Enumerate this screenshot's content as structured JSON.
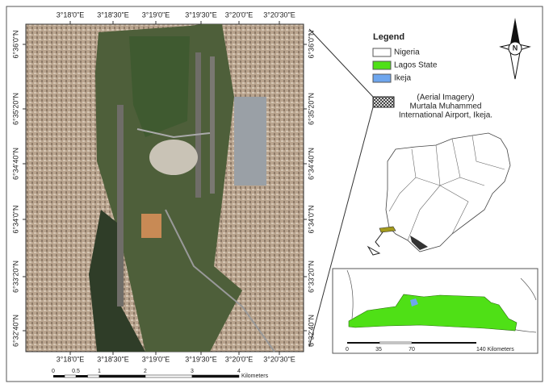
{
  "map": {
    "top_lon_labels": [
      "3°18'0\"E",
      "3°18'30\"E",
      "3°19'0\"E",
      "3°19'30\"E",
      "3°20'0\"E",
      "3°20'30\"E"
    ],
    "bottom_lon_labels": [
      "3°18'0\"E",
      "3°18'30\"E",
      "3°19'0\"E",
      "3°19'30\"E",
      "3°20'0\"E",
      "3°20'30\"E"
    ],
    "left_lat_labels": [
      "6°36'0\"N",
      "6°35'20\"N",
      "6°34'40\"N",
      "6°34'0\"N",
      "6°33'20\"N",
      "6°32'40\"N"
    ],
    "right_lat_labels": [
      "6°36'0\"N",
      "6°35'20\"N",
      "6°34'40\"N",
      "6°34'0\"N",
      "6°33'20\"N",
      "6°32'40\"N"
    ],
    "scale_bar": {
      "labels": [
        "0",
        "0.5",
        "1",
        "2",
        "3",
        "4"
      ],
      "unit": "Kilometers"
    }
  },
  "north_arrow": {
    "label": "N"
  },
  "legend": {
    "title": "Legend",
    "items": [
      "Nigeria",
      "Lagos State",
      "Ikeja"
    ],
    "imagery_label": [
      "(Aerial Imagery)",
      "Murtala Muhammed",
      "International Airport, Ikeja."
    ]
  },
  "inset": {
    "scale_labels": [
      "0",
      "35",
      "70",
      "140 Kilometers"
    ]
  }
}
